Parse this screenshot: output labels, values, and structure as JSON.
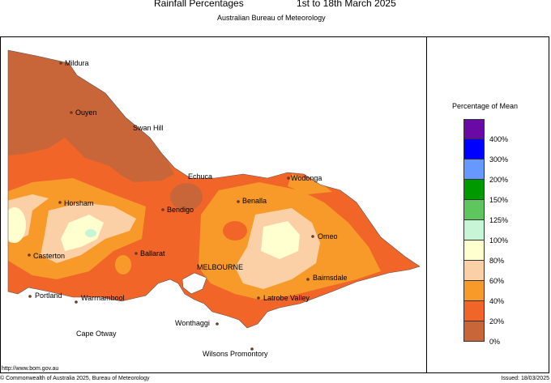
{
  "header": {
    "title": "Rainfall Percentages",
    "period": "1st to 18th March 2025",
    "agency": "Australian Bureau of Meteorology"
  },
  "legend": {
    "title": "Percentage of Mean",
    "entries": [
      {
        "color": "#6a0aa6",
        "label": ""
      },
      {
        "color": "#0000ff",
        "label": "400%"
      },
      {
        "color": "#6698ff",
        "label": "300%"
      },
      {
        "color": "#009a00",
        "label": "200%"
      },
      {
        "color": "#5fc55f",
        "label": "150%"
      },
      {
        "color": "#c8f5d5",
        "label": "125%"
      },
      {
        "color": "#ffffd0",
        "label": "100%"
      },
      {
        "color": "#fbd0a6",
        "label": "80%"
      },
      {
        "color": "#f89a2a",
        "label": "60%"
      },
      {
        "color": "#f26528",
        "label": "40%"
      },
      {
        "color": "#c8663a",
        "label": "20%"
      },
      {
        "color": "",
        "label": "0%"
      }
    ]
  },
  "places": [
    {
      "name": "Mildura",
      "dot": true
    },
    {
      "name": "Ouyen",
      "dot": true
    },
    {
      "name": "Swan Hill",
      "dot": false
    },
    {
      "name": "Echuca",
      "dot": false
    },
    {
      "name": "Wodonga",
      "dot": true
    },
    {
      "name": "Horsham",
      "dot": true
    },
    {
      "name": "Benalla",
      "dot": true
    },
    {
      "name": "Bendigo",
      "dot": true
    },
    {
      "name": "Omeo",
      "dot": true
    },
    {
      "name": "Casterton",
      "dot": true
    },
    {
      "name": "Ballarat",
      "dot": true
    },
    {
      "name": "MELBOURNE",
      "dot": false
    },
    {
      "name": "Bairnsdale",
      "dot": true
    },
    {
      "name": "Portland",
      "dot": true
    },
    {
      "name": "Warrnambool",
      "dot": true
    },
    {
      "name": "Latrobe Valley",
      "dot": true
    },
    {
      "name": "Wonthaggi",
      "dot": true
    },
    {
      "name": "Cape Otway",
      "dot": false
    },
    {
      "name": "Wilsons Promontory",
      "dot": true
    }
  ],
  "footer": {
    "url": "http://www.bom.gov.au",
    "copyright": "© Commonwealth of Australia 2025, Bureau of Meteorology",
    "issued": "Issued: 18/03/2025"
  }
}
